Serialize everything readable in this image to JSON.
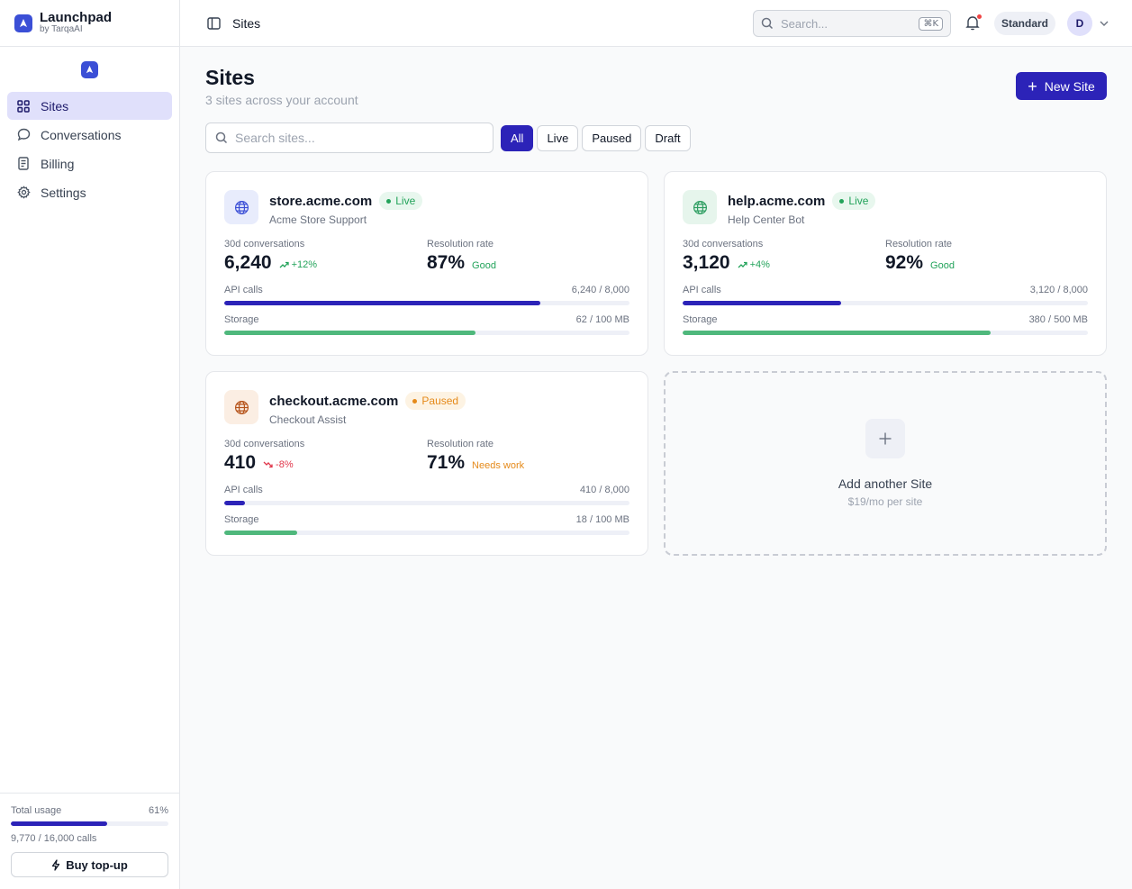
{
  "brand": {
    "name": "Launchpad",
    "sub": "by TarqaAI",
    "logo_icon": "rocket-icon"
  },
  "nav": {
    "items": [
      {
        "label": "Sites",
        "icon": "grid-icon",
        "active": true
      },
      {
        "label": "Conversations",
        "icon": "chat-icon",
        "active": false
      },
      {
        "label": "Billing",
        "icon": "receipt-icon",
        "active": false
      },
      {
        "label": "Settings",
        "icon": "gear-icon",
        "active": false
      }
    ]
  },
  "usage": {
    "label": "Total usage",
    "percent_label": "61%",
    "percent": 61,
    "calls": "9,770 / 16,000 calls",
    "topup_label": "Buy top-up"
  },
  "header": {
    "title": "Sites",
    "search_placeholder": "Search...",
    "search_shortcut": "⌘K",
    "plan": "Standard",
    "avatar_initial": "D"
  },
  "page": {
    "title": "Sites",
    "subtitle": "3 sites across your account",
    "new_button": "New Site",
    "search_placeholder": "Search sites...",
    "filters": [
      "All",
      "Live",
      "Paused",
      "Draft"
    ],
    "active_filter": "All"
  },
  "sites": [
    {
      "domain": "store.acme.com",
      "description": "Acme Store Support",
      "status": "Live",
      "conv_label": "30d conversations",
      "conversations": "6,240",
      "delta": "+12%",
      "delta_dir": "up",
      "res_label": "Resolution rate",
      "resolution": "87%",
      "quality": "Good",
      "api_label": "API calls",
      "api_value": "6,240 / 8,000",
      "api_fraction": 0.78,
      "storage_label": "Storage",
      "storage_value": "62 / 100 MB",
      "storage_fraction": 0.62
    },
    {
      "domain": "help.acme.com",
      "description": "Help Center Bot",
      "status": "Live",
      "conv_label": "30d conversations",
      "conversations": "3,120",
      "delta": "+4%",
      "delta_dir": "up",
      "res_label": "Resolution rate",
      "resolution": "92%",
      "quality": "Good",
      "api_label": "API calls",
      "api_value": "3,120 / 8,000",
      "api_fraction": 0.39,
      "storage_label": "Storage",
      "storage_value": "380 / 500 MB",
      "storage_fraction": 0.76
    },
    {
      "domain": "checkout.acme.com",
      "description": "Checkout Assist",
      "status": "Paused",
      "conv_label": "30d conversations",
      "conversations": "410",
      "delta": "-8%",
      "delta_dir": "down",
      "res_label": "Resolution rate",
      "resolution": "71%",
      "quality": "Needs work",
      "api_label": "API calls",
      "api_value": "410 / 8,000",
      "api_fraction": 0.05,
      "storage_label": "Storage",
      "storage_value": "18 / 100 MB",
      "storage_fraction": 0.18
    }
  ],
  "add_card": {
    "title": "Add another Site",
    "subtitle": "$19/mo per site"
  },
  "colors": {
    "accent": "#2c23b8",
    "live": "#22a35a",
    "paused": "#e58a1a",
    "good": "#22a35a",
    "needs_work": "#e58a1a",
    "down": "#e0364a"
  }
}
